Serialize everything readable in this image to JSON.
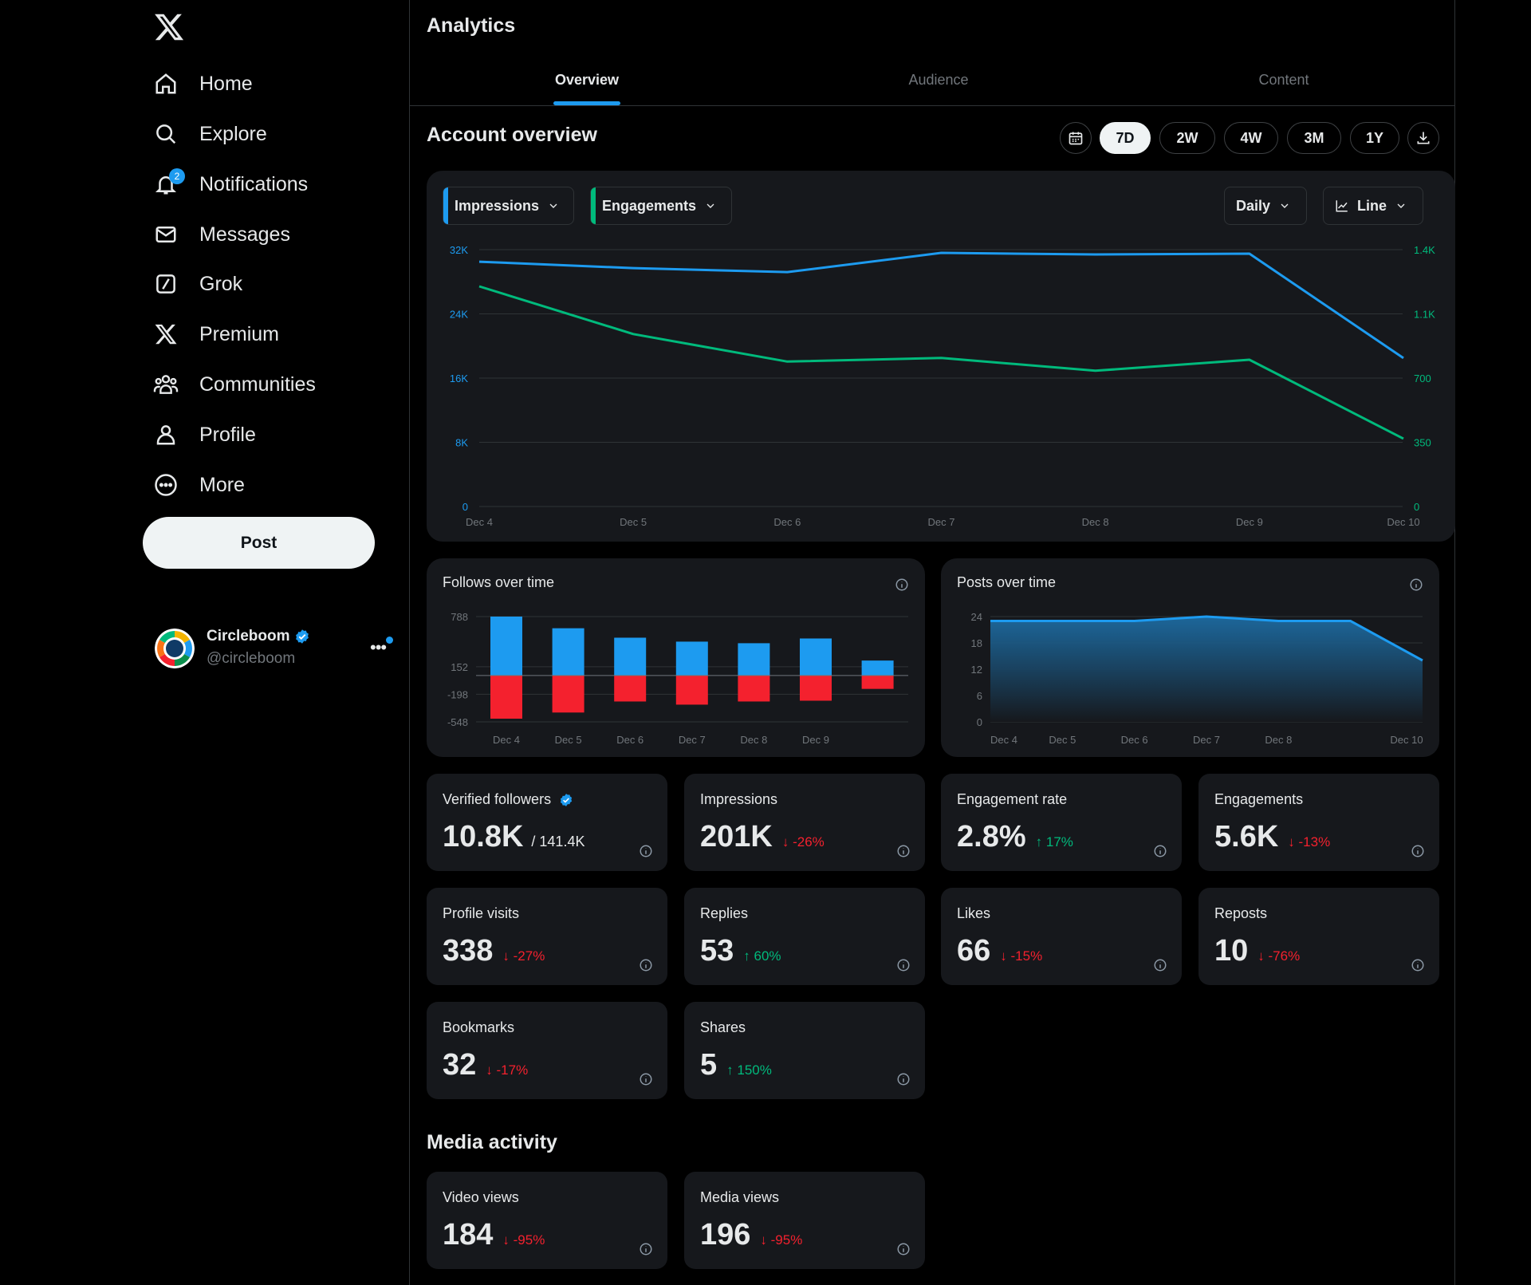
{
  "sidebar": {
    "nav": [
      {
        "label": "Home",
        "icon": "home-icon"
      },
      {
        "label": "Explore",
        "icon": "search-icon"
      },
      {
        "label": "Notifications",
        "icon": "bell-icon",
        "badge": "2"
      },
      {
        "label": "Messages",
        "icon": "envelope-icon"
      },
      {
        "label": "Grok",
        "icon": "grok-icon"
      },
      {
        "label": "Premium",
        "icon": "x-logo-icon"
      },
      {
        "label": "Communities",
        "icon": "people-icon"
      },
      {
        "label": "Profile",
        "icon": "person-icon"
      },
      {
        "label": "More",
        "icon": "more-circle-icon"
      }
    ],
    "post_label": "Post",
    "account": {
      "name": "Circleboom",
      "handle": "@circleboom"
    }
  },
  "header": {
    "title": "Analytics"
  },
  "tabs": [
    {
      "label": "Overview",
      "active": true
    },
    {
      "label": "Audience",
      "active": false
    },
    {
      "label": "Content",
      "active": false
    }
  ],
  "overview": {
    "title": "Account overview",
    "ranges": [
      "7D",
      "2W",
      "4W",
      "3M",
      "1Y"
    ],
    "active_range": "7D",
    "metric_a": "Impressions",
    "metric_b": "Engagements",
    "interval": "Daily",
    "chart_type_label": "Line"
  },
  "colors": {
    "blue": "#1d9bf0",
    "green": "#00ba7c",
    "red": "#f4212e",
    "card": "#16181c"
  },
  "chart_data": [
    {
      "type": "line",
      "x": [
        "Dec 4",
        "Dec 5",
        "Dec 6",
        "Dec 7",
        "Dec 8",
        "Dec 9",
        "Dec 10"
      ],
      "series": [
        {
          "name": "Impressions",
          "axis": "left",
          "values": [
            30500,
            29700,
            29200,
            31600,
            31400,
            31500,
            18500
          ]
        },
        {
          "name": "Engagements",
          "axis": "right",
          "values": [
            1200,
            940,
            790,
            810,
            740,
            800,
            370
          ]
        }
      ],
      "left_ticks": [
        "0",
        "8K",
        "16K",
        "24K",
        "32K"
      ],
      "left_tick_values": [
        0,
        8000,
        16000,
        24000,
        32000
      ],
      "right_ticks": [
        "0",
        "350",
        "700",
        "1.1K",
        "1.4K"
      ],
      "right_tick_values": [
        0,
        350,
        700,
        1050,
        1400
      ],
      "grid": true
    },
    {
      "type": "bar",
      "title": "Follows over time",
      "categories": [
        "Dec 4",
        "Dec 5",
        "Dec 6",
        "Dec 7",
        "Dec 8",
        "Dec 9",
        "Dec 10"
      ],
      "x_labels": [
        "Dec 4",
        "Dec 5",
        "Dec 6",
        "Dec 7",
        "Dec 8",
        "Dec 9"
      ],
      "series": [
        {
          "values": [
            788,
            640,
            520,
            470,
            450,
            510,
            230
          ]
        },
        {
          "values": [
            -548,
            -470,
            -330,
            -370,
            -330,
            -320,
            -170
          ]
        }
      ],
      "y_ticks": [
        "788",
        "152",
        "-198",
        "-548"
      ],
      "y_tick_values": [
        788,
        152,
        -198,
        -548
      ],
      "grid": true
    },
    {
      "type": "area",
      "title": "Posts over time",
      "x": [
        "Dec 4",
        "Dec 5",
        "Dec 6",
        "Dec 7",
        "Dec 8",
        "Dec 9",
        "Dec 10"
      ],
      "x_labels": [
        "Dec 4",
        "Dec 5",
        "Dec 6",
        "Dec 7",
        "Dec 8",
        "Dec 10"
      ],
      "values": [
        23,
        23,
        23,
        24,
        23,
        23,
        14
      ],
      "y_ticks": [
        "0",
        "6",
        "12",
        "18",
        "24"
      ],
      "ylim": [
        0,
        24
      ],
      "grid": true
    }
  ],
  "metrics": [
    {
      "label": "Verified followers",
      "value": "10.8K",
      "sub": "/ 141.4K",
      "verified": true
    },
    {
      "label": "Impressions",
      "value": "201K",
      "change": "-26%",
      "dir": "down"
    },
    {
      "label": "Engagement rate",
      "value": "2.8%",
      "change": "17%",
      "dir": "up"
    },
    {
      "label": "Engagements",
      "value": "5.6K",
      "change": "-13%",
      "dir": "down"
    },
    {
      "label": "Profile visits",
      "value": "338",
      "change": "-27%",
      "dir": "down"
    },
    {
      "label": "Replies",
      "value": "53",
      "change": "60%",
      "dir": "up"
    },
    {
      "label": "Likes",
      "value": "66",
      "change": "-15%",
      "dir": "down"
    },
    {
      "label": "Reposts",
      "value": "10",
      "change": "-76%",
      "dir": "down"
    },
    {
      "label": "Bookmarks",
      "value": "32",
      "change": "-17%",
      "dir": "down"
    },
    {
      "label": "Shares",
      "value": "5",
      "change": "150%",
      "dir": "up"
    }
  ],
  "media": {
    "title": "Media activity",
    "metrics": [
      {
        "label": "Video views",
        "value": "184",
        "change": "-95%",
        "dir": "down"
      },
      {
        "label": "Media views",
        "value": "196",
        "change": "-95%",
        "dir": "down"
      }
    ]
  }
}
